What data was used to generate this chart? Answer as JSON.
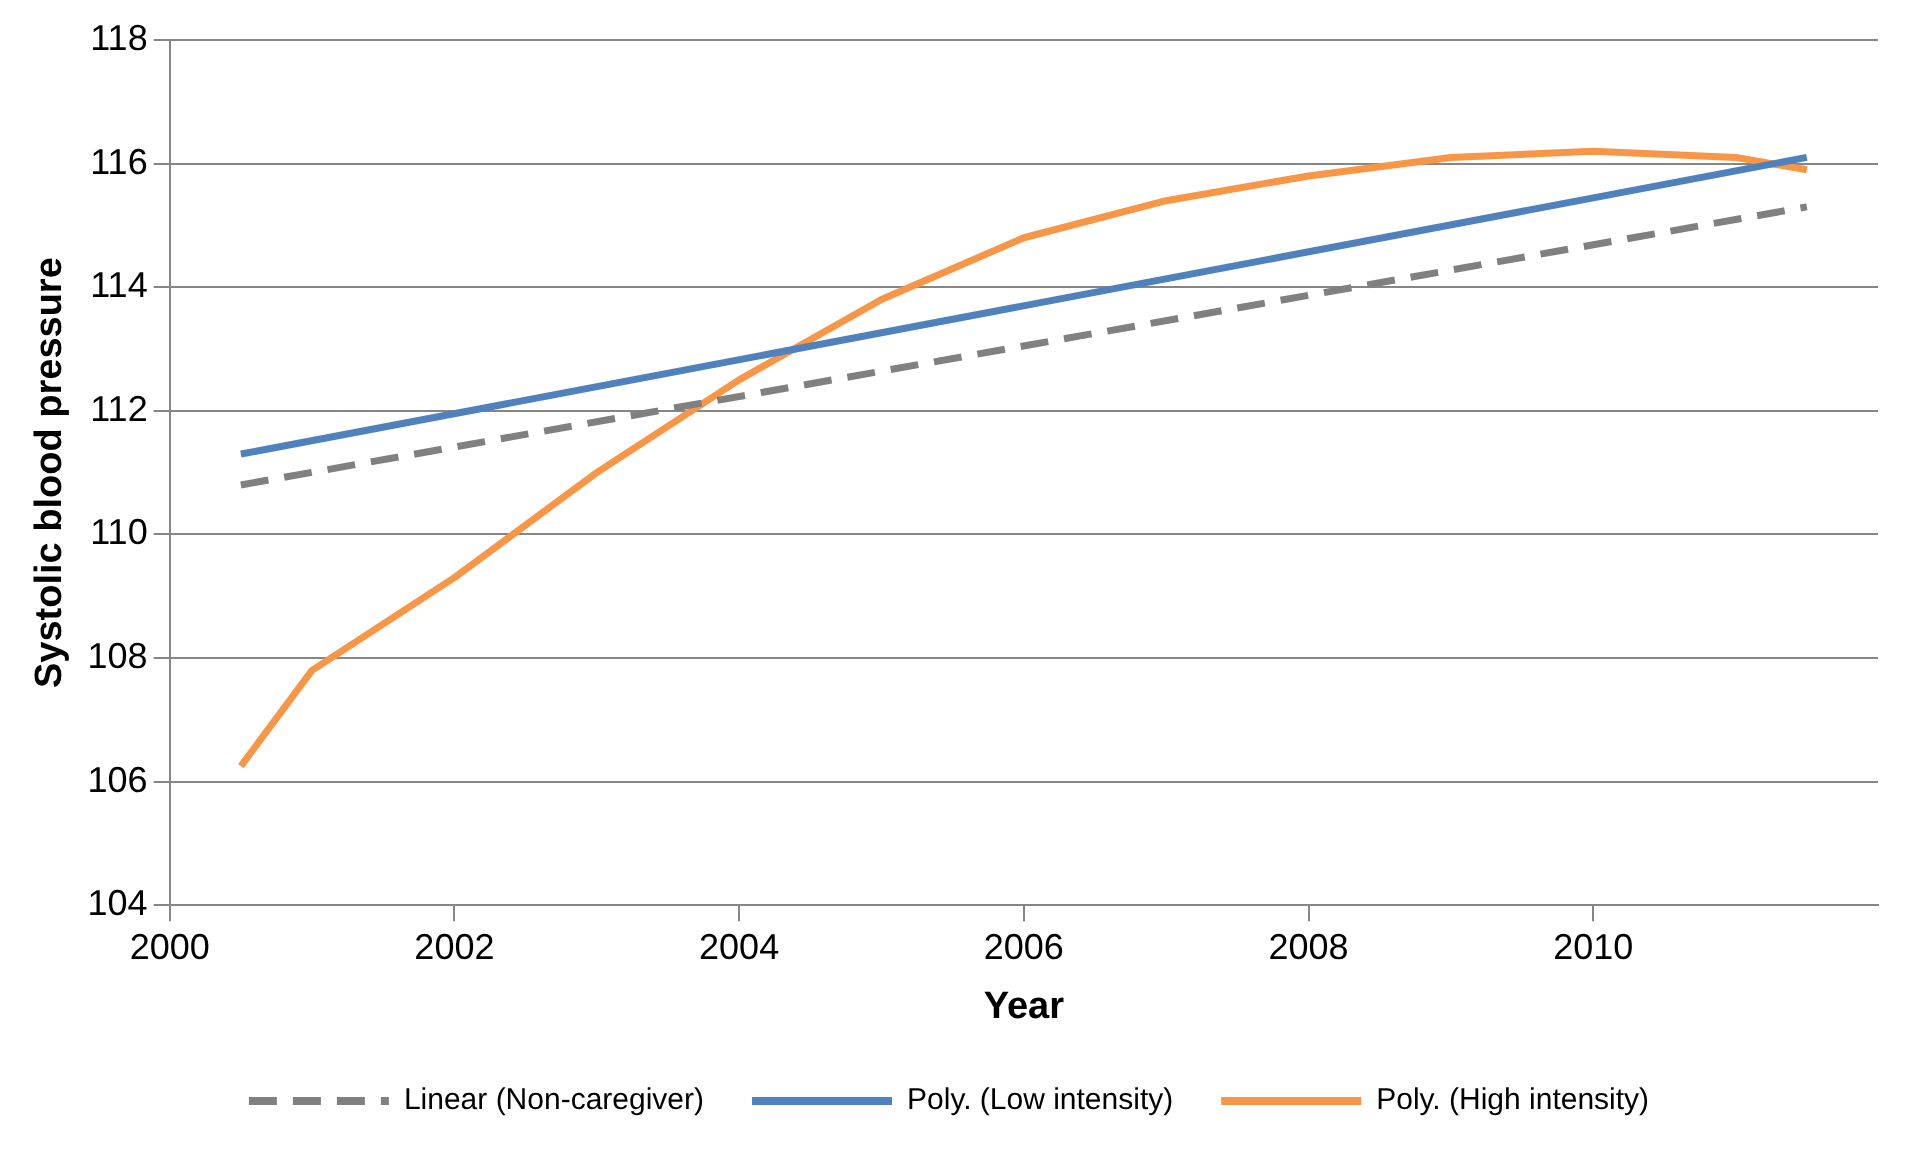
{
  "chart_data": {
    "type": "line",
    "xlabel": "Year",
    "ylabel": "Systolic blood pressure",
    "xlim": [
      2000,
      2012
    ],
    "xticks": [
      2000,
      2002,
      2004,
      2006,
      2008,
      2010
    ],
    "ylim": [
      104,
      118
    ],
    "yticks": [
      104,
      106,
      108,
      110,
      112,
      114,
      116,
      118
    ],
    "grid": "y",
    "legend": "bottom",
    "marker": "none",
    "series": [
      {
        "name": "Linear (Non-caregiver)",
        "color": "#808080",
        "line_style": "dashed",
        "x": [
          2000.5,
          2011.5
        ],
        "values": [
          110.8,
          115.3
        ]
      },
      {
        "name": "Poly. (Low intensity)",
        "color": "#4f81bd",
        "line_style": "solid",
        "x": [
          2000.5,
          2011.5
        ],
        "values": [
          111.3,
          116.1
        ]
      },
      {
        "name": "Poly. (High intensity)",
        "color": "#f79646",
        "line_style": "solid",
        "x": [
          2000.5,
          2001,
          2002,
          2003,
          2004,
          2005,
          2006,
          2007,
          2008,
          2009,
          2010,
          2011,
          2011.5
        ],
        "values": [
          106.25,
          107.8,
          109.3,
          111.0,
          112.5,
          113.8,
          114.8,
          115.4,
          115.8,
          116.1,
          116.2,
          116.1,
          115.9
        ]
      }
    ]
  }
}
